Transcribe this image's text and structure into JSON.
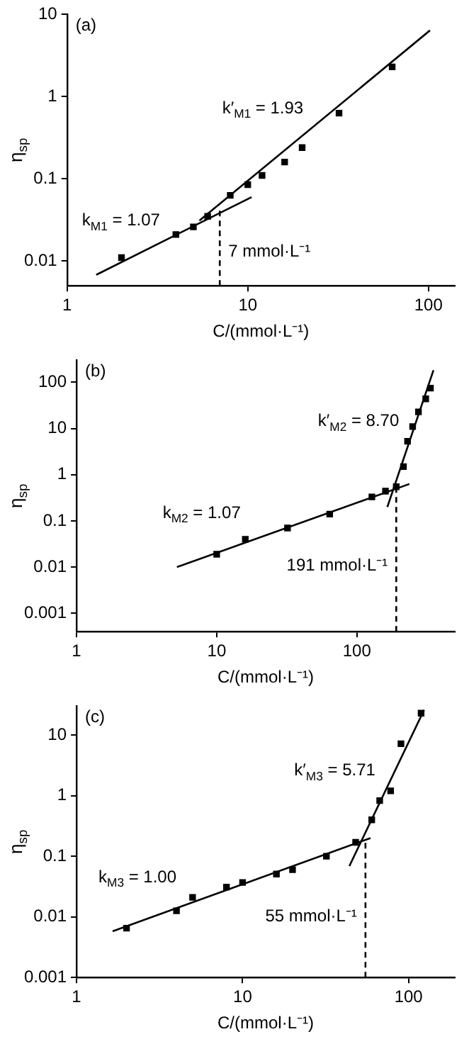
{
  "chart_data": [
    {
      "type": "scatter",
      "log": "xy",
      "grid": false,
      "legend": false,
      "marker": "square",
      "xlabel": "C/(mmol·L⁻¹)",
      "ylabel": "η$_{sp}$",
      "xlim": [
        1,
        140
      ],
      "ylim": [
        0.005,
        10
      ],
      "xticks": [
        1,
        10,
        100
      ],
      "yticks": [
        0.01,
        0.1,
        1,
        10
      ],
      "series": [
        {
          "type": "scatter",
          "color": "#000000",
          "x": [
            2,
            4,
            5,
            6,
            8,
            10,
            12,
            16,
            20,
            32,
            63
          ],
          "values": [
            0.011,
            0.021,
            0.026,
            0.035,
            0.063,
            0.085,
            0.11,
            0.16,
            0.24,
            0.63,
            2.3
          ]
        },
        {
          "type": "line",
          "color": "#000000",
          "marker": "none",
          "line_style": "solid",
          "x": [
            1.45,
            10.5
          ],
          "values": [
            0.0068,
            0.06
          ]
        },
        {
          "type": "line",
          "color": "#000000",
          "marker": "none",
          "line_style": "solid",
          "x": [
            5.4,
            102
          ],
          "values": [
            0.031,
            6.4
          ]
        },
        {
          "type": "line",
          "color": "#000000",
          "marker": "none",
          "line_style": "dashed",
          "x": [
            7,
            7
          ],
          "values": [
            0.005,
            0.041
          ]
        }
      ],
      "annotations": [
        "(a)",
        "k$_{M1}$ = 1.07",
        "k′$_{M1}$ = 1.93",
        "7 mmol·L⁻¹"
      ]
    },
    {
      "type": "scatter",
      "log": "xy",
      "grid": false,
      "legend": false,
      "marker": "square",
      "xlabel": "C/(mmol·L⁻¹)",
      "ylabel": "η$_{sp}$",
      "xlim": [
        1,
        500
      ],
      "ylim": [
        0.0004,
        300
      ],
      "xticks": [
        1,
        10,
        100
      ],
      "yticks": [
        0.001,
        0.01,
        0.1,
        1,
        10,
        100
      ],
      "series": [
        {
          "type": "scatter",
          "color": "#000000",
          "x": [
            10,
            16,
            32,
            64,
            128,
            160,
            191,
            215,
            230,
            250,
            275,
            310,
            335
          ],
          "values": [
            0.019,
            0.04,
            0.07,
            0.14,
            0.33,
            0.44,
            0.55,
            1.5,
            5.3,
            11,
            23,
            44,
            75
          ]
        },
        {
          "type": "line",
          "color": "#000000",
          "marker": "none",
          "line_style": "solid",
          "x": [
            5.2,
            237
          ],
          "values": [
            0.01,
            0.63
          ]
        },
        {
          "type": "line",
          "color": "#000000",
          "marker": "none",
          "line_style": "solid",
          "x": [
            165,
            352
          ],
          "values": [
            0.2,
            183
          ]
        },
        {
          "type": "line",
          "color": "#000000",
          "marker": "none",
          "line_style": "dashed",
          "x": [
            191,
            191
          ],
          "values": [
            0.0004,
            0.6
          ]
        }
      ],
      "annotations": [
        "(b)",
        "k$_{M2}$ = 1.07",
        "k′$_{M2}$ = 8.70",
        "191 mmol·L⁻¹"
      ]
    },
    {
      "type": "scatter",
      "log": "xy",
      "grid": false,
      "legend": false,
      "marker": "square",
      "xlabel": "C/(mmol·L⁻¹)",
      "ylabel": "η$_{sp}$",
      "xlim": [
        1,
        190
      ],
      "ylim": [
        0.001,
        30
      ],
      "xticks": [
        1,
        10,
        100
      ],
      "yticks": [
        0.001,
        0.01,
        0.1,
        1,
        10
      ],
      "series": [
        {
          "type": "scatter",
          "color": "#000000",
          "x": [
            2,
            4,
            5,
            8,
            10,
            16,
            20,
            32,
            48,
            60,
            67,
            78,
            90,
            119
          ],
          "values": [
            0.0065,
            0.0126,
            0.021,
            0.031,
            0.037,
            0.051,
            0.06,
            0.1,
            0.17,
            0.4,
            0.83,
            1.2,
            7.2,
            23
          ]
        },
        {
          "type": "line",
          "color": "#000000",
          "marker": "none",
          "line_style": "solid",
          "x": [
            1.65,
            59
          ],
          "values": [
            0.0058,
            0.2
          ]
        },
        {
          "type": "line",
          "color": "#000000",
          "marker": "none",
          "line_style": "solid",
          "x": [
            44,
            124
          ],
          "values": [
            0.069,
            26
          ]
        },
        {
          "type": "line",
          "color": "#000000",
          "marker": "none",
          "line_style": "dashed",
          "x": [
            55,
            55
          ],
          "values": [
            0.001,
            0.17
          ]
        }
      ],
      "annotations": [
        "(c)",
        "k$_{M3}$ = 1.00",
        "k′$_{M3}$ = 5.71",
        "55 mmol·L⁻¹"
      ]
    }
  ]
}
